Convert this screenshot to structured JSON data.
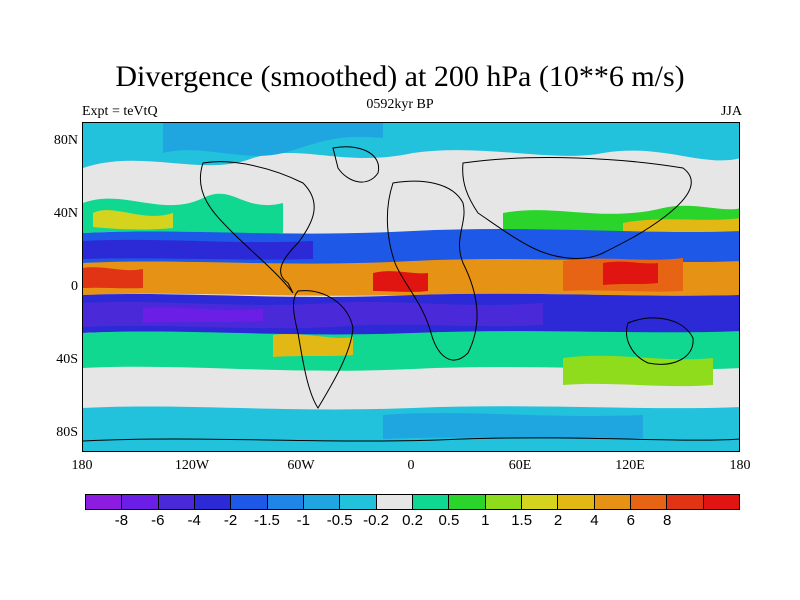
{
  "title": "Divergence (smoothed) at 200 hPa (10**6 m/s)",
  "left_label": "Expt = teVtQ",
  "center_label": "0592kyr BP",
  "right_label": "JJA",
  "lat_ticks": [
    "80N",
    "40N",
    "0",
    "40S",
    "80S"
  ],
  "lon_ticks": [
    "180",
    "120W",
    "60W",
    "0",
    "60E",
    "120E",
    "180"
  ],
  "colorbar": {
    "colors": [
      "#8c1de0",
      "#6a1ee6",
      "#4a2ad8",
      "#2b2ad6",
      "#1d58e6",
      "#1f86e8",
      "#1fa6e0",
      "#22c1dc",
      "#e6e6e6",
      "#10d890",
      "#2ad42a",
      "#8edc1c",
      "#d4d41e",
      "#e2b814",
      "#e69214",
      "#e66414",
      "#e03414",
      "#e01410"
    ],
    "labels": [
      "-8",
      "-6",
      "-4",
      "-2",
      "-1.5",
      "-1",
      "-0.5",
      "-0.2",
      "0.2",
      "0.5",
      "1",
      "1.5",
      "2",
      "4",
      "6",
      "8"
    ]
  },
  "chart_data": {
    "type": "heatmap",
    "title": "Divergence (smoothed) at 200 hPa (10**6 m/s)",
    "subtitle": "0592kyr BP",
    "season": "JJA",
    "experiment": "teVtQ",
    "xlim": [
      -180,
      180
    ],
    "ylim": [
      -90,
      90
    ],
    "contour_levels": [
      -8,
      -6,
      -4,
      -2,
      -1.5,
      -1,
      -0.5,
      -0.2,
      0.2,
      0.5,
      1,
      1.5,
      2,
      4,
      6,
      8
    ],
    "bands": [
      {
        "lat_range": [
          60,
          90
        ],
        "value": -0.8
      },
      {
        "lat_range": [
          30,
          60
        ],
        "value": 0.3
      },
      {
        "lat_range": [
          15,
          30
        ],
        "value": -1.5
      },
      {
        "lat_range": [
          0,
          15
        ],
        "value": 3.0
      },
      {
        "lat_range": [
          -20,
          0
        ],
        "value": -3.5
      },
      {
        "lat_range": [
          -40,
          -20
        ],
        "value": 0.8
      },
      {
        "lat_range": [
          -65,
          -40
        ],
        "value": 0.4
      },
      {
        "lat_range": [
          -90,
          -65
        ],
        "value": -0.8
      }
    ]
  }
}
